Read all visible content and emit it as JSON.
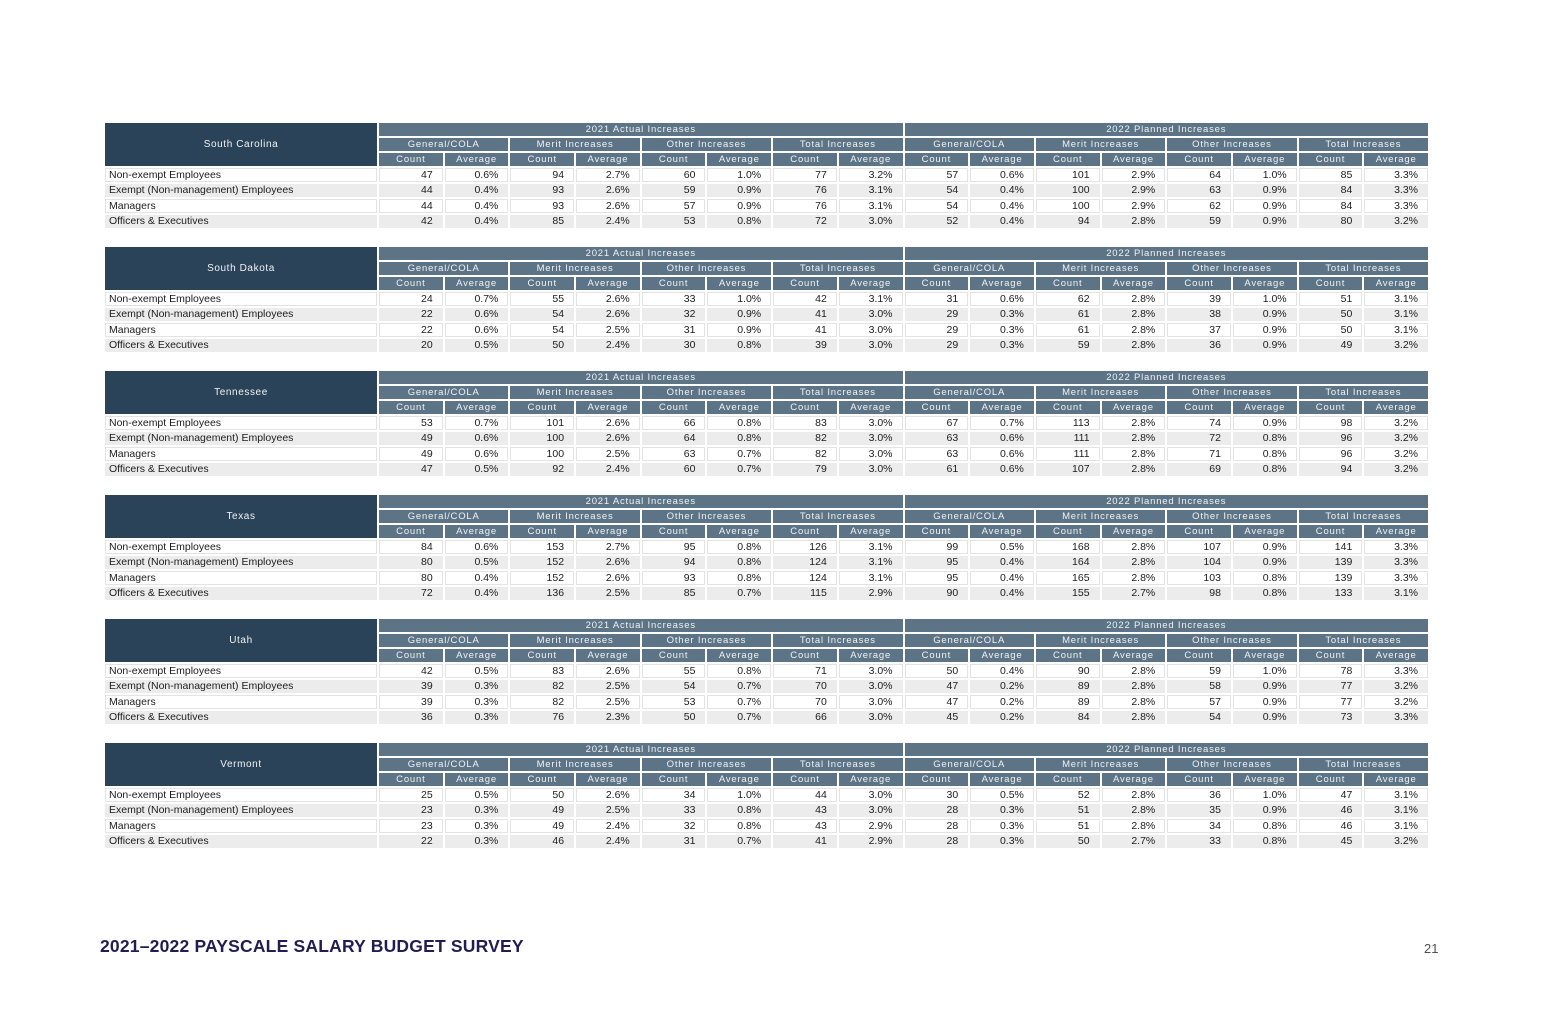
{
  "footer": {
    "title": "2021–2022 PAYSCALE SALARY BUDGET SURVEY",
    "page_number": "21"
  },
  "table_headers": {
    "sections": [
      "2021 Actual Increases",
      "2022 Planned Increases"
    ],
    "groups": [
      "General/COLA",
      "Merit Increases",
      "Other Increases",
      "Total Increases"
    ],
    "metrics": [
      "Count",
      "Average"
    ]
  },
  "row_labels": [
    "Non-exempt Employees",
    "Exempt (Non-management) Employees",
    "Managers",
    "Officers & Executives"
  ],
  "tables": [
    {
      "state": "South Carolina",
      "rows": [
        [
          "47",
          "0.6%",
          "94",
          "2.7%",
          "60",
          "1.0%",
          "77",
          "3.2%",
          "57",
          "0.6%",
          "101",
          "2.9%",
          "64",
          "1.0%",
          "85",
          "3.3%"
        ],
        [
          "44",
          "0.4%",
          "93",
          "2.6%",
          "59",
          "0.9%",
          "76",
          "3.1%",
          "54",
          "0.4%",
          "100",
          "2.9%",
          "63",
          "0.9%",
          "84",
          "3.3%"
        ],
        [
          "44",
          "0.4%",
          "93",
          "2.6%",
          "57",
          "0.9%",
          "76",
          "3.1%",
          "54",
          "0.4%",
          "100",
          "2.9%",
          "62",
          "0.9%",
          "84",
          "3.3%"
        ],
        [
          "42",
          "0.4%",
          "85",
          "2.4%",
          "53",
          "0.8%",
          "72",
          "3.0%",
          "52",
          "0.4%",
          "94",
          "2.8%",
          "59",
          "0.9%",
          "80",
          "3.2%"
        ]
      ]
    },
    {
      "state": "South Dakota",
      "rows": [
        [
          "24",
          "0.7%",
          "55",
          "2.6%",
          "33",
          "1.0%",
          "42",
          "3.1%",
          "31",
          "0.6%",
          "62",
          "2.8%",
          "39",
          "1.0%",
          "51",
          "3.1%"
        ],
        [
          "22",
          "0.6%",
          "54",
          "2.6%",
          "32",
          "0.9%",
          "41",
          "3.0%",
          "29",
          "0.3%",
          "61",
          "2.8%",
          "38",
          "0.9%",
          "50",
          "3.1%"
        ],
        [
          "22",
          "0.6%",
          "54",
          "2.5%",
          "31",
          "0.9%",
          "41",
          "3.0%",
          "29",
          "0.3%",
          "61",
          "2.8%",
          "37",
          "0.9%",
          "50",
          "3.1%"
        ],
        [
          "20",
          "0.5%",
          "50",
          "2.4%",
          "30",
          "0.8%",
          "39",
          "3.0%",
          "29",
          "0.3%",
          "59",
          "2.8%",
          "36",
          "0.9%",
          "49",
          "3.2%"
        ]
      ]
    },
    {
      "state": "Tennessee",
      "rows": [
        [
          "53",
          "0.7%",
          "101",
          "2.6%",
          "66",
          "0.8%",
          "83",
          "3.0%",
          "67",
          "0.7%",
          "113",
          "2.8%",
          "74",
          "0.9%",
          "98",
          "3.2%"
        ],
        [
          "49",
          "0.6%",
          "100",
          "2.6%",
          "64",
          "0.8%",
          "82",
          "3.0%",
          "63",
          "0.6%",
          "111",
          "2.8%",
          "72",
          "0.8%",
          "96",
          "3.2%"
        ],
        [
          "49",
          "0.6%",
          "100",
          "2.5%",
          "63",
          "0.7%",
          "82",
          "3.0%",
          "63",
          "0.6%",
          "111",
          "2.8%",
          "71",
          "0.8%",
          "96",
          "3.2%"
        ],
        [
          "47",
          "0.5%",
          "92",
          "2.4%",
          "60",
          "0.7%",
          "79",
          "3.0%",
          "61",
          "0.6%",
          "107",
          "2.8%",
          "69",
          "0.8%",
          "94",
          "3.2%"
        ]
      ]
    },
    {
      "state": "Texas",
      "rows": [
        [
          "84",
          "0.6%",
          "153",
          "2.7%",
          "95",
          "0.8%",
          "126",
          "3.1%",
          "99",
          "0.5%",
          "168",
          "2.8%",
          "107",
          "0.9%",
          "141",
          "3.3%"
        ],
        [
          "80",
          "0.5%",
          "152",
          "2.6%",
          "94",
          "0.8%",
          "124",
          "3.1%",
          "95",
          "0.4%",
          "164",
          "2.8%",
          "104",
          "0.9%",
          "139",
          "3.3%"
        ],
        [
          "80",
          "0.4%",
          "152",
          "2.6%",
          "93",
          "0.8%",
          "124",
          "3.1%",
          "95",
          "0.4%",
          "165",
          "2.8%",
          "103",
          "0.8%",
          "139",
          "3.3%"
        ],
        [
          "72",
          "0.4%",
          "136",
          "2.5%",
          "85",
          "0.7%",
          "115",
          "2.9%",
          "90",
          "0.4%",
          "155",
          "2.7%",
          "98",
          "0.8%",
          "133",
          "3.1%"
        ]
      ]
    },
    {
      "state": "Utah",
      "rows": [
        [
          "42",
          "0.5%",
          "83",
          "2.6%",
          "55",
          "0.8%",
          "71",
          "3.0%",
          "50",
          "0.4%",
          "90",
          "2.8%",
          "59",
          "1.0%",
          "78",
          "3.3%"
        ],
        [
          "39",
          "0.3%",
          "82",
          "2.5%",
          "54",
          "0.7%",
          "70",
          "3.0%",
          "47",
          "0.2%",
          "89",
          "2.8%",
          "58",
          "0.9%",
          "77",
          "3.2%"
        ],
        [
          "39",
          "0.3%",
          "82",
          "2.5%",
          "53",
          "0.7%",
          "70",
          "3.0%",
          "47",
          "0.2%",
          "89",
          "2.8%",
          "57",
          "0.9%",
          "77",
          "3.2%"
        ],
        [
          "36",
          "0.3%",
          "76",
          "2.3%",
          "50",
          "0.7%",
          "66",
          "3.0%",
          "45",
          "0.2%",
          "84",
          "2.8%",
          "54",
          "0.9%",
          "73",
          "3.3%"
        ]
      ]
    },
    {
      "state": "Vermont",
      "rows": [
        [
          "25",
          "0.5%",
          "50",
          "2.6%",
          "34",
          "1.0%",
          "44",
          "3.0%",
          "30",
          "0.5%",
          "52",
          "2.8%",
          "36",
          "1.0%",
          "47",
          "3.1%"
        ],
        [
          "23",
          "0.3%",
          "49",
          "2.5%",
          "33",
          "0.8%",
          "43",
          "3.0%",
          "28",
          "0.3%",
          "51",
          "2.8%",
          "35",
          "0.9%",
          "46",
          "3.1%"
        ],
        [
          "23",
          "0.3%",
          "49",
          "2.4%",
          "32",
          "0.8%",
          "43",
          "2.9%",
          "28",
          "0.3%",
          "51",
          "2.8%",
          "34",
          "0.8%",
          "46",
          "3.1%"
        ],
        [
          "22",
          "0.3%",
          "46",
          "2.4%",
          "31",
          "0.7%",
          "41",
          "2.9%",
          "28",
          "0.3%",
          "50",
          "2.7%",
          "33",
          "0.8%",
          "45",
          "3.2%"
        ]
      ]
    }
  ],
  "colors": {
    "state_header_bg": "#2B4358",
    "column_header_bg": "#5D7487",
    "header_text": "#F0F3F5",
    "row_alt_bg": "#ECECEC",
    "body_text": "#1C1C1C",
    "footer_title_text": "#231C54",
    "page_number_text": "#4F4F4F"
  }
}
